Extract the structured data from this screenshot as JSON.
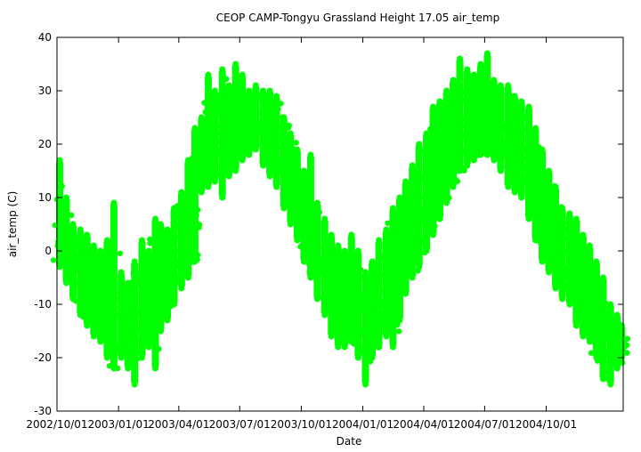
{
  "chart_data": {
    "type": "scatter",
    "title": "CEOP CAMP-Tongyu Grassland Height 17.05 air_temp",
    "xlabel": "Date",
    "ylabel": "air_temp (C)",
    "xlim": [
      "2002-10-01",
      "2005-01-24"
    ],
    "ylim": [
      -30,
      40
    ],
    "y_ticks": [
      -30,
      -20,
      -10,
      0,
      10,
      20,
      30,
      40
    ],
    "x_ticks": [
      "2002/10/01",
      "2003/01/01",
      "2003/04/01",
      "2003/07/01",
      "2003/10/01",
      "2004/01/01",
      "2004/04/01",
      "2004/07/01",
      "2004/10/01"
    ],
    "grid": false,
    "legend": "none",
    "marker_color": "#00ff00",
    "series": [
      {
        "values": [
          {
            "date": "2002-10-05",
            "low": -3,
            "high": 17,
            "mean": 5
          },
          {
            "date": "2002-10-15",
            "low": -6,
            "high": 10,
            "mean": 1
          },
          {
            "date": "2002-10-25",
            "low": -9,
            "high": 5,
            "mean": -2
          },
          {
            "date": "2002-11-05",
            "low": -12,
            "high": 4,
            "mean": -4
          },
          {
            "date": "2002-11-15",
            "low": -14,
            "high": 3,
            "mean": -6
          },
          {
            "date": "2002-11-25",
            "low": -16,
            "high": 1,
            "mean": -8
          },
          {
            "date": "2002-12-05",
            "low": -17,
            "high": 0,
            "mean": -9
          },
          {
            "date": "2002-12-15",
            "low": -20,
            "high": 2,
            "mean": -10
          },
          {
            "date": "2002-12-25",
            "low": -22,
            "high": 9,
            "mean": -11
          },
          {
            "date": "2003-01-05",
            "low": -20,
            "high": -4,
            "mean": -13
          },
          {
            "date": "2003-01-15",
            "low": -22,
            "high": -6,
            "mean": -14
          },
          {
            "date": "2003-01-25",
            "low": -25,
            "high": -2,
            "mean": -13
          },
          {
            "date": "2003-02-05",
            "low": -20,
            "high": 2,
            "mean": -10
          },
          {
            "date": "2003-02-15",
            "low": -18,
            "high": 0,
            "mean": -8
          },
          {
            "date": "2003-02-25",
            "low": -22,
            "high": 6,
            "mean": -8
          },
          {
            "date": "2003-03-05",
            "low": -15,
            "high": 5,
            "mean": -5
          },
          {
            "date": "2003-03-15",
            "low": -13,
            "high": 4,
            "mean": -4
          },
          {
            "date": "2003-03-25",
            "low": -10,
            "high": 8,
            "mean": -1
          },
          {
            "date": "2003-04-05",
            "low": -7,
            "high": 11,
            "mean": 2
          },
          {
            "date": "2003-04-15",
            "low": -5,
            "high": 17,
            "mean": 5
          },
          {
            "date": "2003-04-25",
            "low": -2,
            "high": 23,
            "mean": 8
          },
          {
            "date": "2003-05-05",
            "low": 11,
            "high": 25,
            "mean": 18
          },
          {
            "date": "2003-05-15",
            "low": 12,
            "high": 33,
            "mean": 20
          },
          {
            "date": "2003-05-25",
            "low": 13,
            "high": 30,
            "mean": 21
          },
          {
            "date": "2003-06-05",
            "low": 10,
            "high": 34,
            "mean": 23
          },
          {
            "date": "2003-06-15",
            "low": 14,
            "high": 31,
            "mean": 23
          },
          {
            "date": "2003-06-25",
            "low": 15,
            "high": 35,
            "mean": 25
          },
          {
            "date": "2003-07-05",
            "low": 17,
            "high": 33,
            "mean": 25
          },
          {
            "date": "2003-07-15",
            "low": 18,
            "high": 30,
            "mean": 24
          },
          {
            "date": "2003-07-25",
            "low": 19,
            "high": 31,
            "mean": 25
          },
          {
            "date": "2003-08-05",
            "low": 16,
            "high": 30,
            "mean": 24
          },
          {
            "date": "2003-08-15",
            "low": 14,
            "high": 30,
            "mean": 22
          },
          {
            "date": "2003-08-25",
            "low": 12,
            "high": 29,
            "mean": 21
          },
          {
            "date": "2003-09-05",
            "low": 8,
            "high": 25,
            "mean": 17
          },
          {
            "date": "2003-09-15",
            "low": 5,
            "high": 22,
            "mean": 14
          },
          {
            "date": "2003-09-25",
            "low": 2,
            "high": 19,
            "mean": 11
          },
          {
            "date": "2003-10-05",
            "low": -2,
            "high": 15,
            "mean": 7
          },
          {
            "date": "2003-10-15",
            "low": -5,
            "high": 18,
            "mean": 5
          },
          {
            "date": "2003-10-25",
            "low": -9,
            "high": 9,
            "mean": 1
          },
          {
            "date": "2003-11-05",
            "low": -12,
            "high": 6,
            "mean": -3
          },
          {
            "date": "2003-11-15",
            "low": -16,
            "high": 3,
            "mean": -6
          },
          {
            "date": "2003-11-25",
            "low": -18,
            "high": 1,
            "mean": -8
          },
          {
            "date": "2003-12-05",
            "low": -18,
            "high": 0,
            "mean": -9
          },
          {
            "date": "2003-12-15",
            "low": -17,
            "high": 3,
            "mean": -8
          },
          {
            "date": "2003-12-25",
            "low": -20,
            "high": 0,
            "mean": -10
          },
          {
            "date": "2004-01-05",
            "low": -25,
            "high": -4,
            "mean": -13
          },
          {
            "date": "2004-01-15",
            "low": -20,
            "high": -2,
            "mean": -11
          },
          {
            "date": "2004-01-25",
            "low": -18,
            "high": 2,
            "mean": -9
          },
          {
            "date": "2004-02-05",
            "low": -16,
            "high": 4,
            "mean": -6
          },
          {
            "date": "2004-02-15",
            "low": -18,
            "high": 8,
            "mean": -5
          },
          {
            "date": "2004-02-25",
            "low": -13,
            "high": 10,
            "mean": -2
          },
          {
            "date": "2004-03-05",
            "low": -8,
            "high": 13,
            "mean": 1
          },
          {
            "date": "2004-03-15",
            "low": -5,
            "high": 16,
            "mean": 4
          },
          {
            "date": "2004-03-25",
            "low": -3,
            "high": 20,
            "mean": 7
          },
          {
            "date": "2004-04-05",
            "low": 0,
            "high": 22,
            "mean": 10
          },
          {
            "date": "2004-04-15",
            "low": 3,
            "high": 27,
            "mean": 14
          },
          {
            "date": "2004-04-25",
            "low": 6,
            "high": 28,
            "mean": 16
          },
          {
            "date": "2004-05-05",
            "low": 9,
            "high": 30,
            "mean": 18
          },
          {
            "date": "2004-05-15",
            "low": 12,
            "high": 32,
            "mean": 20
          },
          {
            "date": "2004-05-25",
            "low": 15,
            "high": 36,
            "mean": 22
          },
          {
            "date": "2004-06-05",
            "low": 16,
            "high": 34,
            "mean": 23
          },
          {
            "date": "2004-06-15",
            "low": 17,
            "high": 33,
            "mean": 24
          },
          {
            "date": "2004-06-25",
            "low": 18,
            "high": 35,
            "mean": 25
          },
          {
            "date": "2004-07-05",
            "low": 18,
            "high": 37,
            "mean": 25
          },
          {
            "date": "2004-07-15",
            "low": 17,
            "high": 32,
            "mean": 24
          },
          {
            "date": "2004-07-25",
            "low": 15,
            "high": 31,
            "mean": 23
          },
          {
            "date": "2004-08-05",
            "low": 12,
            "high": 31,
            "mean": 22
          },
          {
            "date": "2004-08-15",
            "low": 11,
            "high": 29,
            "mean": 20
          },
          {
            "date": "2004-08-25",
            "low": 10,
            "high": 28,
            "mean": 19
          },
          {
            "date": "2004-09-05",
            "low": 6,
            "high": 27,
            "mean": 16
          },
          {
            "date": "2004-09-15",
            "low": 2,
            "high": 23,
            "mean": 12
          },
          {
            "date": "2004-09-25",
            "low": -2,
            "high": 19,
            "mean": 8
          },
          {
            "date": "2004-10-05",
            "low": -4,
            "high": 15,
            "mean": 5
          },
          {
            "date": "2004-10-15",
            "low": -7,
            "high": 12,
            "mean": 2
          },
          {
            "date": "2004-10-25",
            "low": -9,
            "high": 8,
            "mean": -1
          },
          {
            "date": "2004-11-05",
            "low": -10,
            "high": 7,
            "mean": -2
          },
          {
            "date": "2004-11-15",
            "low": -14,
            "high": 6,
            "mean": -5
          },
          {
            "date": "2004-11-25",
            "low": -16,
            "high": 3,
            "mean": -7
          },
          {
            "date": "2004-12-05",
            "low": -17,
            "high": 1,
            "mean": -9
          },
          {
            "date": "2004-12-15",
            "low": -20,
            "high": -2,
            "mean": -12
          },
          {
            "date": "2004-12-25",
            "low": -24,
            "high": -5,
            "mean": -15
          },
          {
            "date": "2005-01-05",
            "low": -25,
            "high": -10,
            "mean": -18
          },
          {
            "date": "2005-01-15",
            "low": -22,
            "high": -12,
            "mean": -17
          },
          {
            "date": "2005-01-22",
            "low": -20,
            "high": -14,
            "mean": -17
          }
        ]
      }
    ]
  }
}
